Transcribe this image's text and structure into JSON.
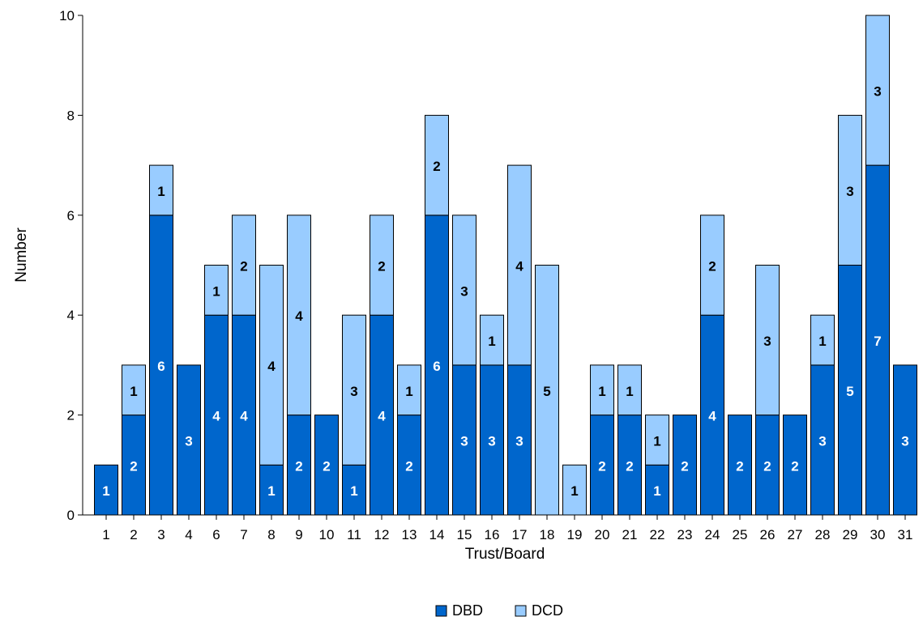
{
  "chart_data": {
    "type": "bar",
    "stacked": true,
    "xlabel": "Trust/Board",
    "ylabel": "Number",
    "ylim": [
      0,
      10
    ],
    "yticks": [
      0,
      2,
      4,
      6,
      8,
      10
    ],
    "categories": [
      "1",
      "2",
      "3",
      "4",
      "6",
      "7",
      "8",
      "9",
      "10",
      "11",
      "12",
      "13",
      "14",
      "15",
      "16",
      "17",
      "18",
      "19",
      "20",
      "21",
      "22",
      "23",
      "24",
      "25",
      "26",
      "27",
      "28",
      "29",
      "30",
      "31"
    ],
    "series": [
      {
        "name": "DBD",
        "color": "#0066cc",
        "label_color": "#ffffff",
        "values": [
          1,
          2,
          6,
          3,
          4,
          4,
          1,
          2,
          2,
          1,
          4,
          2,
          6,
          3,
          3,
          3,
          0,
          0,
          2,
          2,
          1,
          2,
          4,
          2,
          2,
          2,
          3,
          5,
          7,
          3
        ]
      },
      {
        "name": "DCD",
        "color": "#99ccff",
        "label_color": "#000000",
        "values": [
          0,
          1,
          1,
          0,
          1,
          2,
          4,
          4,
          0,
          3,
          2,
          1,
          2,
          3,
          1,
          4,
          5,
          1,
          1,
          1,
          1,
          0,
          2,
          0,
          3,
          0,
          1,
          3,
          3,
          0
        ]
      }
    ],
    "legend_position": "bottom-center",
    "grid": false,
    "data_labels": true
  }
}
